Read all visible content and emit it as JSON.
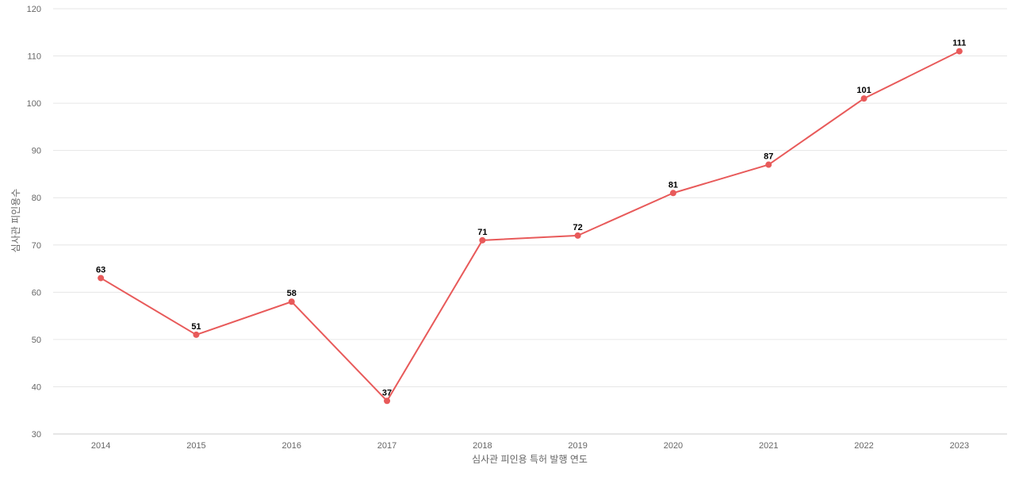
{
  "chart_data": {
    "type": "line",
    "title": "",
    "xlabel": "심사관 피인용 특허 발행 연도",
    "ylabel": "심사관 피인용수",
    "categories": [
      "2014",
      "2015",
      "2016",
      "2017",
      "2018",
      "2019",
      "2020",
      "2021",
      "2022",
      "2023"
    ],
    "series": [
      {
        "values": [
          63,
          51,
          58,
          37,
          71,
          72,
          81,
          87,
          101,
          111
        ],
        "color": "#e85a5a"
      }
    ],
    "ylim": [
      30,
      120
    ],
    "yticks": [
      30,
      40,
      50,
      60,
      70,
      80,
      90,
      100,
      110,
      120
    ],
    "grid": true,
    "data_labels": true,
    "legend": "none"
  }
}
